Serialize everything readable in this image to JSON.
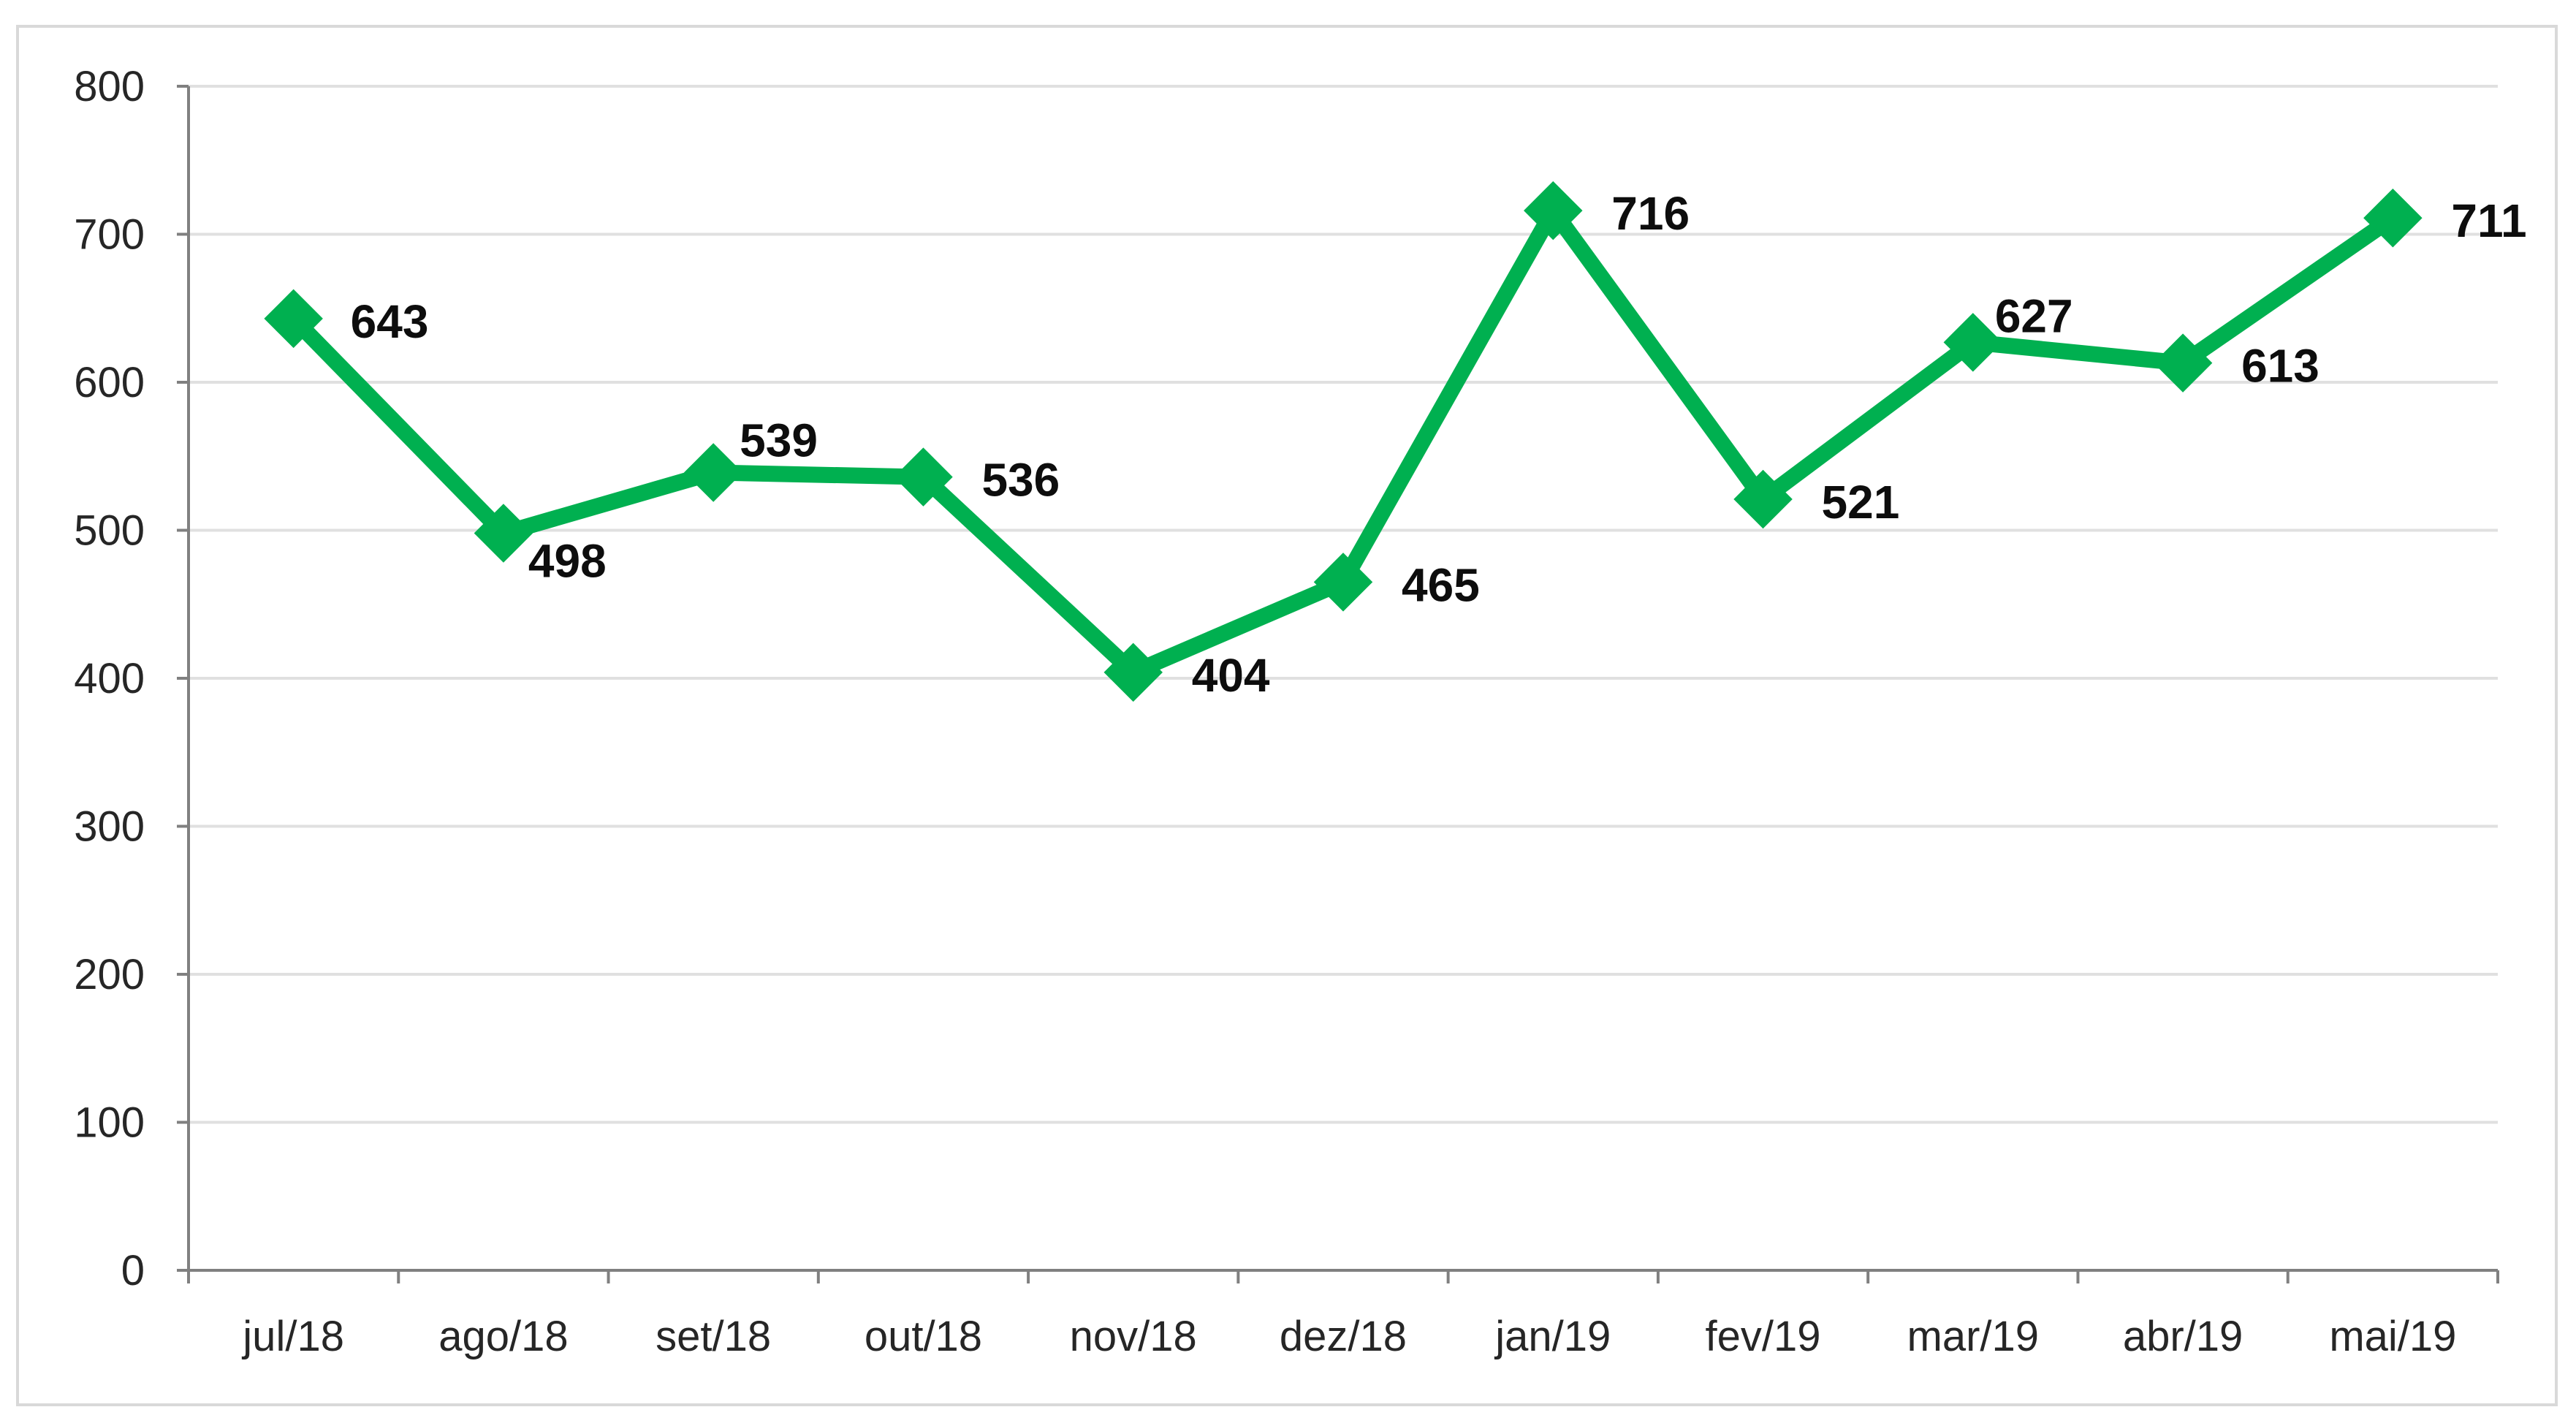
{
  "chart_data": {
    "type": "line",
    "categories": [
      "jul/18",
      "ago/18",
      "set/18",
      "out/18",
      "nov/18",
      "dez/18",
      "jan/19",
      "fev/19",
      "mar/19",
      "abr/19",
      "mai/19"
    ],
    "series": [
      {
        "values": [
          643,
          498,
          539,
          536,
          404,
          465,
          716,
          521,
          627,
          613,
          711
        ],
        "color": "#00b050",
        "marker": "diamond"
      }
    ],
    "data_labels": [
      "643",
      "498",
      "539",
      "536",
      "404",
      "465",
      "716",
      "521",
      "627",
      "613",
      "711"
    ],
    "y_ticks": [
      "0",
      "100",
      "200",
      "300",
      "400",
      "500",
      "600",
      "700",
      "800"
    ],
    "ylim": [
      0,
      800
    ],
    "y_tick_step": 100,
    "grid": "horizontal",
    "legend": "none",
    "title": "",
    "xlabel": "",
    "ylabel": ""
  }
}
